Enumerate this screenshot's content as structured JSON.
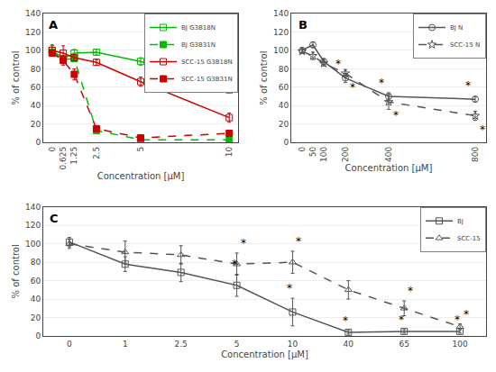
{
  "chart_data": [
    {
      "type": "line",
      "title": "A",
      "xlabel": "Concentration [µM]",
      "ylabel": "% of control",
      "x": [
        0,
        0.625,
        1.25,
        2.5,
        5,
        10
      ],
      "xlim": [
        -0.5,
        10.5
      ],
      "xticks": [
        0,
        0.625,
        1.25,
        2.5,
        5,
        10
      ],
      "ylim": [
        0,
        140
      ],
      "yticks": [
        0,
        20,
        40,
        60,
        80,
        100,
        120,
        140
      ],
      "grid": "y",
      "legend": "upper right",
      "series": [
        {
          "name": "BJ G3B18N",
          "color": "#00bb00",
          "marker": "square-open",
          "line_style": "solid",
          "values": [
            100,
            91,
            97,
            98,
            88,
            57
          ],
          "yerr": [
            5,
            3,
            4,
            3,
            4,
            3
          ]
        },
        {
          "name": "BJ G3B31N",
          "color": "#00bb00",
          "marker": "square",
          "line_style": "dash",
          "values": [
            98,
            90,
            91,
            13,
            3,
            3
          ],
          "yerr": [
            3,
            2,
            3,
            2,
            1,
            1
          ]
        },
        {
          "name": "SCC-15 G3B18N",
          "color": "#cc0000",
          "marker": "square-open",
          "line_style": "solid",
          "values": [
            100,
            97,
            92,
            87,
            66,
            27
          ],
          "yerr": [
            6,
            8,
            3,
            3,
            5,
            5
          ]
        },
        {
          "name": "SCC-15 G3B31N",
          "color": "#cc0000",
          "marker": "square",
          "line_style": "dash",
          "values": [
            97,
            89,
            74,
            15,
            5,
            10
          ],
          "yerr": [
            2,
            5,
            6,
            2,
            1,
            2
          ]
        }
      ]
    },
    {
      "type": "line",
      "title": "B",
      "xlabel": "Concentration [µM]",
      "ylabel": "% of control",
      "x": [
        0,
        50,
        100,
        200,
        400,
        800
      ],
      "xlim": [
        -50,
        850
      ],
      "xticks": [
        0,
        50,
        100,
        200,
        400,
        800
      ],
      "ylim": [
        0,
        140
      ],
      "yticks": [
        0,
        20,
        40,
        60,
        80,
        100,
        120,
        140
      ],
      "grid": "y",
      "legend": "upper right",
      "series": [
        {
          "name": "BJ N",
          "color": "#555555",
          "marker": "circle-open",
          "line_style": "solid",
          "values": [
            100,
            106,
            88,
            70,
            50,
            47
          ],
          "yerr": [
            3,
            3,
            3,
            5,
            4,
            3
          ],
          "annotations": [
            {
              "text": "*",
              "x": 200,
              "y": 76
            },
            {
              "text": "*",
              "x": 400,
              "y": 56
            },
            {
              "text": "*",
              "x": 800,
              "y": 53
            }
          ]
        },
        {
          "name": "SCC-15 N",
          "color": "#555555",
          "marker": "star-open",
          "line_style": "dash",
          "values": [
            99,
            94,
            86,
            75,
            44,
            29
          ],
          "yerr": [
            2,
            4,
            3,
            4,
            8,
            5
          ],
          "annotations": [
            {
              "text": "*",
              "x": 200,
              "y": 69
            },
            {
              "text": "*",
              "x": 400,
              "y": 38
            },
            {
              "text": "*",
              "x": 800,
              "y": 23
            }
          ]
        }
      ]
    },
    {
      "type": "line",
      "title": "C",
      "xlabel": "Concentration [µM]",
      "ylabel": "% of control",
      "categories": [
        "0",
        "1",
        "2.5",
        "5",
        "10",
        "40",
        "65",
        "100"
      ],
      "ylim": [
        0,
        140
      ],
      "yticks": [
        0,
        20,
        40,
        60,
        80,
        100,
        120,
        140
      ],
      "grid": "y",
      "legend": "upper right",
      "series": [
        {
          "name": "BJ",
          "color": "#555555",
          "marker": "square-open",
          "line_style": "solid",
          "values": [
            102,
            78,
            69,
            55,
            26,
            4,
            5,
            5
          ],
          "yerr": [
            5,
            8,
            10,
            12,
            15,
            2,
            2,
            2
          ],
          "annotations": [
            {
              "text": "*",
              "x": "5",
              "y": 69
            },
            {
              "text": "*",
              "x": "10",
              "y": 43
            },
            {
              "text": "*",
              "x": "40",
              "y": 8
            },
            {
              "text": "*",
              "x": "65",
              "y": 9
            },
            {
              "text": "*",
              "x": "100",
              "y": 9
            }
          ]
        },
        {
          "name": "SCC-15",
          "color": "#555555",
          "marker": "triangle-up-open",
          "line_style": "dash",
          "values": [
            100,
            91,
            88,
            78,
            80,
            50,
            30,
            10
          ],
          "yerr": [
            5,
            12,
            10,
            12,
            12,
            10,
            8,
            3
          ],
          "annotations": [
            {
              "text": "*",
              "x": "5",
              "y": 92
            },
            {
              "text": "*",
              "x": "10",
              "y": 94
            },
            {
              "text": "*",
              "x": "65",
              "y": 40
            },
            {
              "text": "*",
              "x": "100",
              "y": 15
            }
          ]
        }
      ]
    }
  ]
}
